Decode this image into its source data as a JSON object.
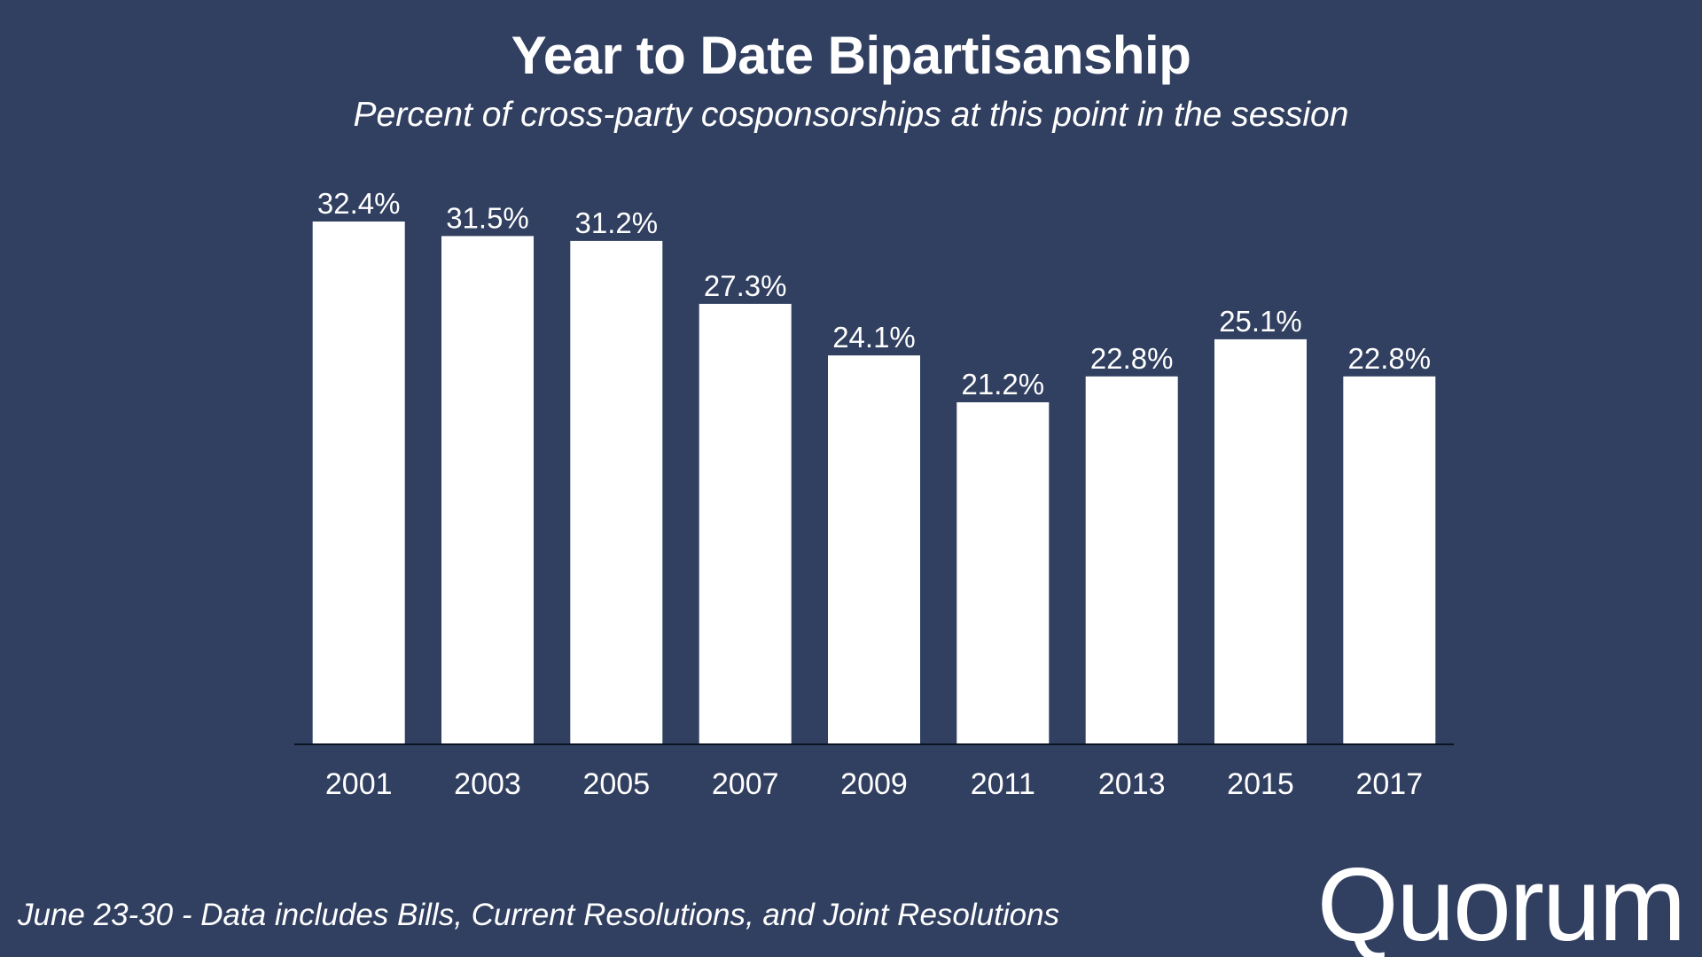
{
  "brand": {
    "logo_text": "Quorum",
    "background_color": "#313f60",
    "bar_color": "#ffffff",
    "text_color": "#ffffff",
    "axis_color": "#0b1222"
  },
  "footnote": "June 23-30 - Data includes Bills, Current Resolutions, and Joint Resolutions",
  "chart_data": {
    "type": "bar",
    "title": "Year to Date Bipartisanship",
    "subtitle": "Percent of cross-party cosponsorships at this point in the session",
    "xlabel": "",
    "ylabel": "",
    "categories": [
      "2001",
      "2003",
      "2005",
      "2007",
      "2009",
      "2011",
      "2013",
      "2015",
      "2017"
    ],
    "values": [
      32.4,
      31.5,
      31.2,
      27.3,
      24.1,
      21.2,
      22.8,
      25.1,
      22.8
    ],
    "value_labels": [
      "32.4%",
      "31.5%",
      "31.2%",
      "27.3%",
      "24.1%",
      "21.2%",
      "22.8%",
      "25.1%",
      "22.8%"
    ],
    "ylim": [
      0,
      32.4
    ],
    "grid": false,
    "legend": "none"
  }
}
